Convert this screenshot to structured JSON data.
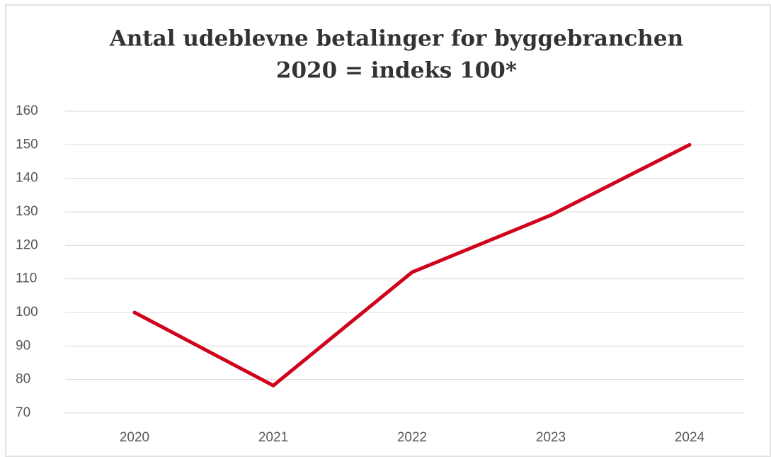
{
  "chart_data": {
    "type": "line",
    "title": "Antal udeblevne betalinger for byggebranchen",
    "subtitle": "2020 = indeks 100*",
    "categories": [
      "2020",
      "2021",
      "2022",
      "2023",
      "2024"
    ],
    "series": [
      {
        "name": "Antal udeblevne betalinger",
        "color": "#d0021b",
        "values": [
          100,
          78.2,
          112,
          129,
          150
        ]
      }
    ],
    "ylim": [
      70,
      160
    ],
    "yticks": [
      70,
      80,
      90,
      100,
      110,
      120,
      130,
      140,
      150,
      160
    ],
    "grid": true
  }
}
